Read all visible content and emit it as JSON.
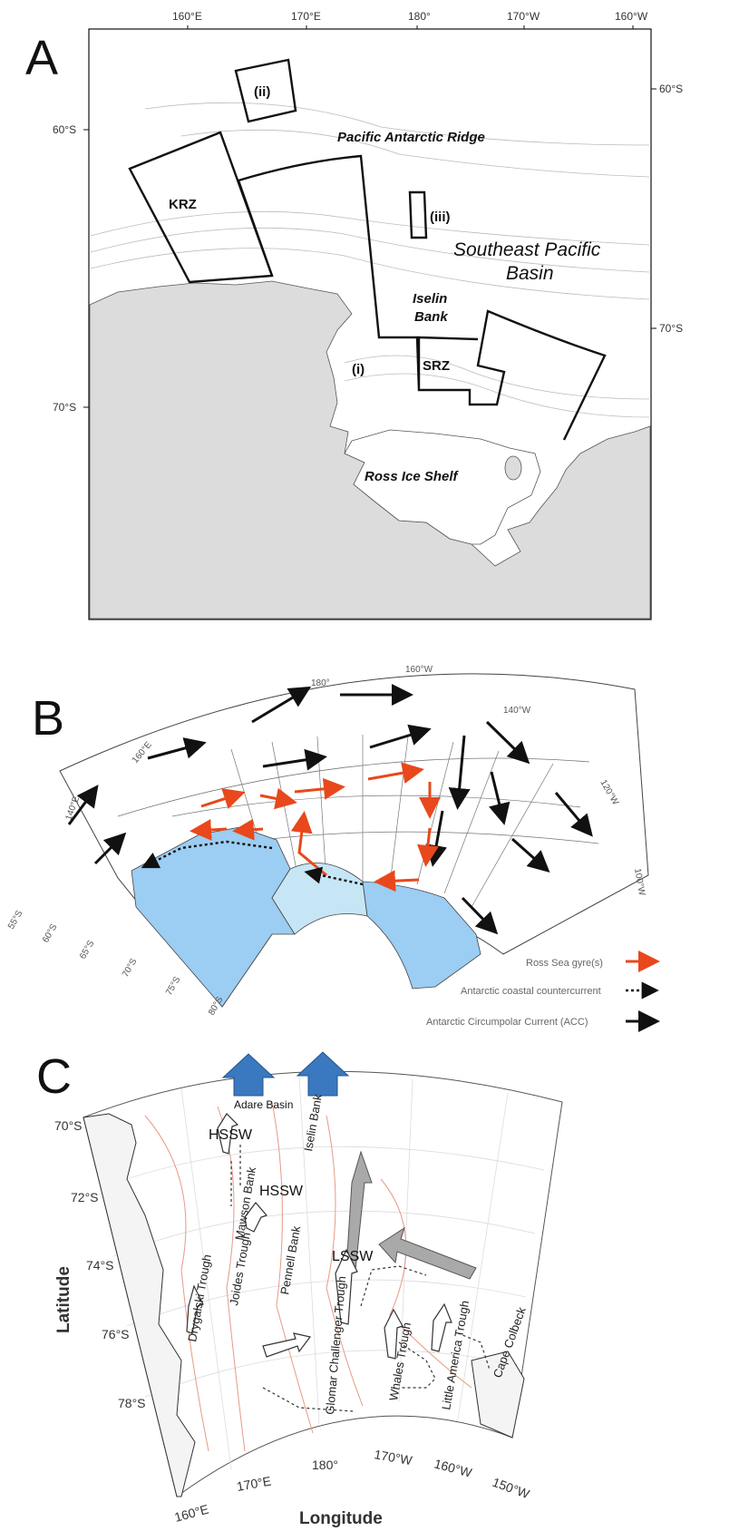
{
  "panel_a": {
    "letter": "A",
    "top_ticks": [
      "160°E",
      "170°E",
      "180°",
      "170°W",
      "160°W"
    ],
    "lat_ticks_left": [
      "60°S",
      "70°S"
    ],
    "lat_ticks_right": [
      "60°S",
      "70°S"
    ],
    "labels": {
      "ridge": "Pacific Antarctic Ridge",
      "basin_1": "Southeast Pacific",
      "basin_2": "Basin",
      "krz": "KRZ",
      "srz": "SRZ",
      "bank_1": "Iselin",
      "bank_2": "Bank",
      "ii": "(ii)",
      "iii": "(iii)",
      "i": "(i)",
      "shelf": "Ross Ice Shelf"
    },
    "colors": {
      "land": "#dcdcdc",
      "sea": "#ffffff",
      "outline": "#111111"
    }
  },
  "panel_b": {
    "letter": "B",
    "lon_ticks": [
      "180°",
      "160°W",
      "140°W",
      "120°W",
      "100°W",
      "160°E",
      "140°E"
    ],
    "lat_ticks": [
      "55°S",
      "60°S",
      "65°S",
      "70°S",
      "75°S",
      "80°S"
    ],
    "legend": [
      {
        "label": "Ross Sea gyre(s)",
        "style": "red-arrow"
      },
      {
        "label": "Antarctic coastal countercurrent",
        "style": "dotted-arrow"
      },
      {
        "label": "Antarctic Circumpolar Current (ACC)",
        "style": "black-arrow"
      }
    ],
    "colors": {
      "gyre": "#e8481c",
      "ice": "#9ccdf2",
      "ice_light": "#c6e6f6",
      "acc": "#111111"
    }
  },
  "panel_c": {
    "letter": "C",
    "basin": "Adare Basin",
    "water_masses": [
      "HSSW",
      "HSSW",
      "LSSW"
    ],
    "features": [
      "Drygalski Trough",
      "Joides Trough",
      "Mawson Bank",
      "Pennell Bank",
      "Iselin Bank",
      "Glomar Challenger Trough",
      "Whales Trough",
      "Little America Trough",
      "Cape Colbeck"
    ],
    "lat_ticks": [
      "70°S",
      "72°S",
      "74°S",
      "76°S",
      "78°S"
    ],
    "lon_ticks": [
      "160°E",
      "170°E",
      "180°",
      "170°W",
      "160°W",
      "150°W"
    ],
    "xlabel": "Longitude",
    "ylabel": "Latitude",
    "colors": {
      "inflow": "#3a78c0",
      "contour": "#e79a84",
      "outflow": "#a9a9a9"
    }
  }
}
